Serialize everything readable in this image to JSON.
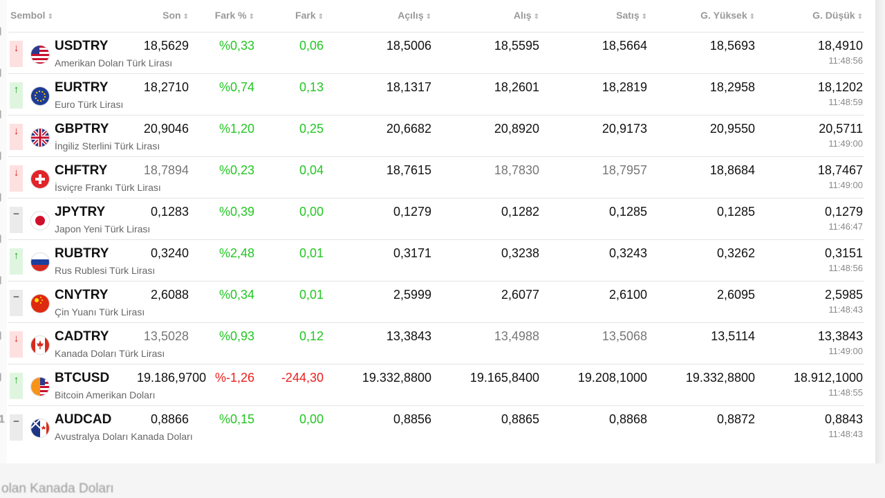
{
  "columns": [
    {
      "label": "Sembol"
    },
    {
      "label": "Son"
    },
    {
      "label": "Fark %"
    },
    {
      "label": "Fark"
    },
    {
      "label": "Açılış"
    },
    {
      "label": "Alış"
    },
    {
      "label": "Satış"
    },
    {
      "label": "G. Yüksek"
    },
    {
      "label": "G. Düşük"
    }
  ],
  "rows": [
    {
      "code": "USDTRY",
      "desc": "Amerikan Doları Türk Lirası",
      "dir": "↓",
      "son": "18,5629",
      "fark_pct": "%0,33",
      "fark": "0,06",
      "acilis": "18,5006",
      "alis": "18,5595",
      "satis": "18,5664",
      "yuksek": "18,5693",
      "dusuk": "18,4910",
      "time": "11:48:56"
    },
    {
      "code": "EURTRY",
      "desc": "Euro Türk Lirası",
      "dir": "↑",
      "son": "18,2710",
      "fark_pct": "%0,74",
      "fark": "0,13",
      "acilis": "18,1317",
      "alis": "18,2601",
      "satis": "18,2819",
      "yuksek": "18,2958",
      "dusuk": "18,1202",
      "time": "11:48:59"
    },
    {
      "code": "GBPTRY",
      "desc": "İngiliz Sterlini Türk Lirası",
      "dir": "↓",
      "son": "20,9046",
      "fark_pct": "%1,20",
      "fark": "0,25",
      "acilis": "20,6682",
      "alis": "20,8920",
      "satis": "20,9173",
      "yuksek": "20,9550",
      "dusuk": "20,5711",
      "time": "11:49:00"
    },
    {
      "code": "CHFTRY",
      "desc": "İsviçre Frankı Türk Lirası",
      "dir": "↓",
      "son": "18,7894",
      "fark_pct": "%0,23",
      "fark": "0,04",
      "acilis": "18,7615",
      "alis": "18,7830",
      "satis": "18,7957",
      "yuksek": "18,8684",
      "dusuk": "18,7467",
      "time": "11:49:00"
    },
    {
      "code": "JPYTRY",
      "desc": "Japon Yeni Türk Lirası",
      "dir": "−",
      "son": "0,1283",
      "fark_pct": "%0,39",
      "fark": "0,00",
      "acilis": "0,1279",
      "alis": "0,1282",
      "satis": "0,1285",
      "yuksek": "0,1285",
      "dusuk": "0,1279",
      "time": "11:46:47"
    },
    {
      "code": "RUBTRY",
      "desc": "Rus Rublesi Türk Lirası",
      "dir": "↑",
      "son": "0,3240",
      "fark_pct": "%2,48",
      "fark": "0,01",
      "acilis": "0,3171",
      "alis": "0,3238",
      "satis": "0,3243",
      "yuksek": "0,3262",
      "dusuk": "0,3151",
      "time": "11:48:56"
    },
    {
      "code": "CNYTRY",
      "desc": "Çin Yuanı Türk Lirası",
      "dir": "−",
      "son": "2,6088",
      "fark_pct": "%0,34",
      "fark": "0,01",
      "acilis": "2,5999",
      "alis": "2,6077",
      "satis": "2,6100",
      "yuksek": "2,6095",
      "dusuk": "2,5985",
      "time": "11:48:43"
    },
    {
      "code": "CADTRY",
      "desc": "Kanada Doları Türk Lirası",
      "dir": "↓",
      "son": "13,5028",
      "fark_pct": "%0,93",
      "fark": "0,12",
      "acilis": "13,3843",
      "alis": "13,4988",
      "satis": "13,5068",
      "yuksek": "13,5114",
      "dusuk": "13,3843",
      "time": "11:49:00"
    },
    {
      "code": "BTCUSD",
      "desc": "Bitcoin Amerikan Doları",
      "dir": "↑",
      "son": "19.186,9700",
      "fark_pct": "%-1,26",
      "fark": "-244,30",
      "acilis": "19.332,8800",
      "alis": "19.165,8400",
      "satis": "19.208,1000",
      "yuksek": "19.332,8800",
      "dusuk": "18.912,1000",
      "time": "11:48:55"
    },
    {
      "code": "AUDCAD",
      "desc": "Avustralya Doları Kanada Doları",
      "dir": "−",
      "son": "0,8866",
      "fark_pct": "%0,15",
      "fark": "0,00",
      "acilis": "0,8856",
      "alis": "0,8865",
      "satis": "0,8868",
      "yuksek": "0,8872",
      "dusuk": "0,8843",
      "time": "11:48:43"
    }
  ],
  "left_fragments": [
    "l",
    "l",
    "l",
    "l",
    "l",
    "l",
    "l",
    "l",
    "l",
    "1"
  ],
  "bottom_text": "olan Kanada Doları",
  "colors": {
    "positive": "#22c722",
    "negative": "#ec1e1e",
    "muted": "#999999"
  },
  "icons": {
    "sort": "sort-icon",
    "up": "arrow-up-icon",
    "down": "arrow-down-icon",
    "flat": "dash-icon"
  }
}
